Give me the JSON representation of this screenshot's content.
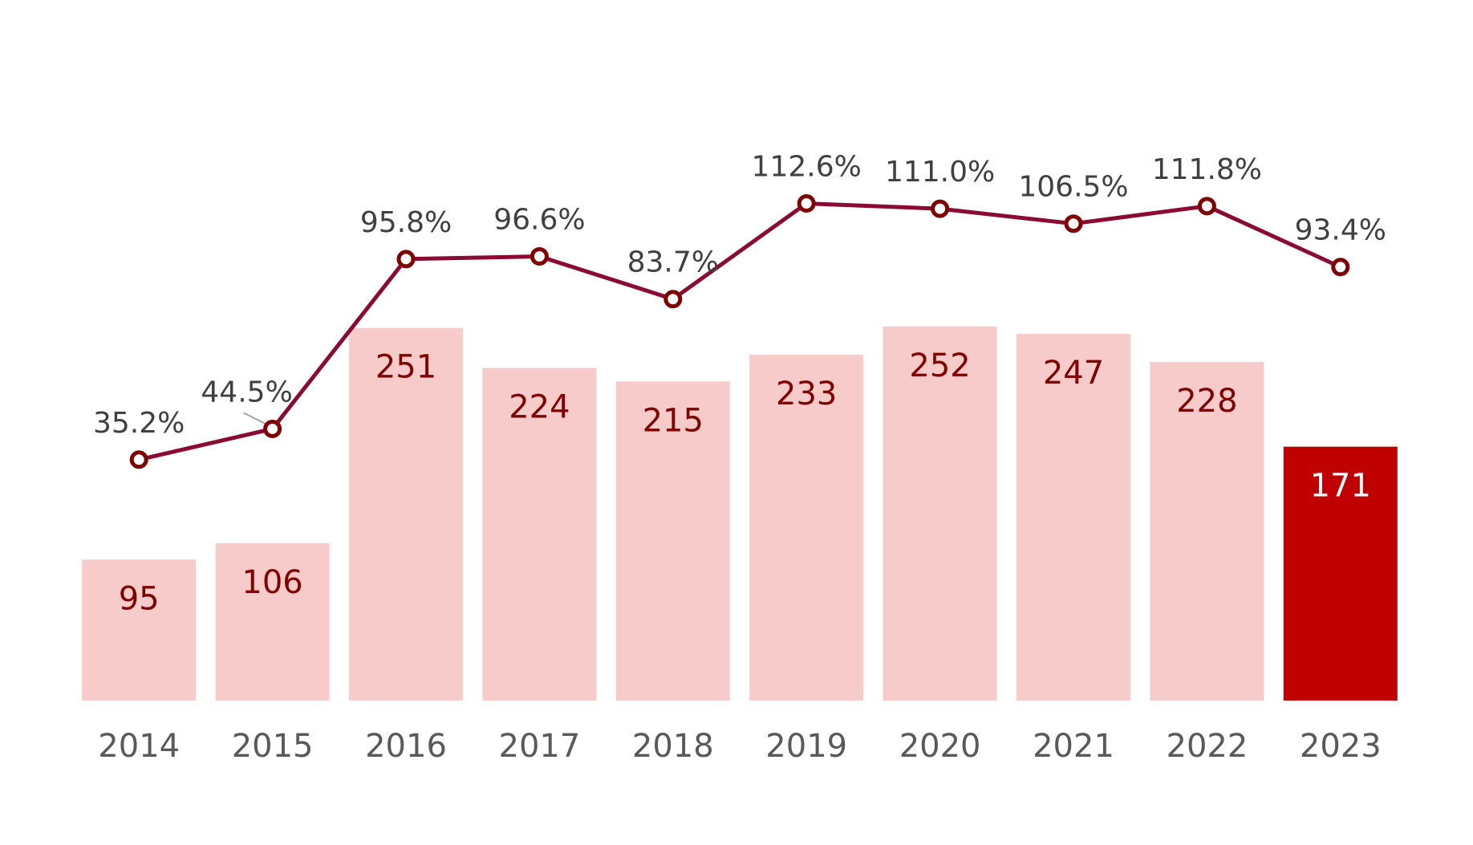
{
  "chart_data": {
    "type": "bar+line",
    "categories": [
      "2014",
      "2015",
      "2016",
      "2017",
      "2018",
      "2019",
      "2020",
      "2021",
      "2022",
      "2023"
    ],
    "series": [
      {
        "name": "bars",
        "type": "bar",
        "values": [
          95,
          106,
          251,
          224,
          215,
          233,
          252,
          247,
          228,
          171
        ],
        "labels": [
          "95",
          "106",
          "251",
          "224",
          "215",
          "233",
          "252",
          "247",
          "228",
          "171"
        ],
        "highlight_index": 9
      },
      {
        "name": "line",
        "type": "line",
        "values": [
          35.2,
          44.5,
          95.8,
          96.6,
          83.7,
          112.6,
          111.0,
          106.5,
          111.8,
          93.4
        ],
        "labels": [
          "35.2%",
          "44.5%",
          "95.8%",
          "96.6%",
          "83.7%",
          "112.6%",
          "111.0%",
          "106.5%",
          "111.8%",
          "93.4%"
        ]
      }
    ],
    "bar_axis_range": [
      0,
      470
    ],
    "line_axis_range": [
      -40,
      136
    ],
    "grid": false,
    "legend": "none",
    "colors": {
      "bar": "#F7CBCA",
      "bar_highlight": "#C00000",
      "bar_label": "#7F0000",
      "bar_label_highlight": "#FFFFFF",
      "line": "#8B0A32",
      "marker_fill": "#FFFFFF",
      "marker_stroke": "#7F0000",
      "line_label": "#404040",
      "tick_label": "#595959"
    }
  }
}
